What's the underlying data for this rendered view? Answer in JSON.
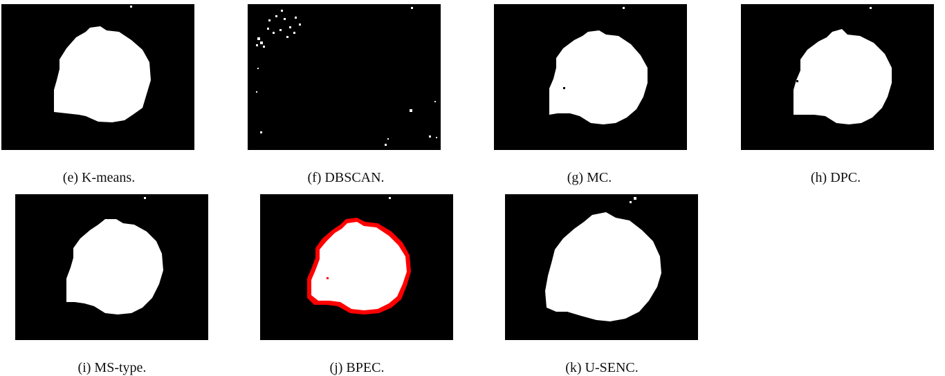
{
  "figure": {
    "panels": [
      {
        "id": "e",
        "caption": "(e) K-means."
      },
      {
        "id": "f",
        "caption": "(f) DBSCAN."
      },
      {
        "id": "g",
        "caption": "(g) MC."
      },
      {
        "id": "h",
        "caption": "(h) DPC."
      },
      {
        "id": "i",
        "caption": "(i) MS-type."
      },
      {
        "id": "j",
        "caption": "(j) BPEC."
      },
      {
        "id": "k",
        "caption": "(k) U-SENC."
      }
    ],
    "colors": {
      "background": "#000000",
      "foreground": "#ffffff",
      "boundary": "#ff0000"
    }
  }
}
